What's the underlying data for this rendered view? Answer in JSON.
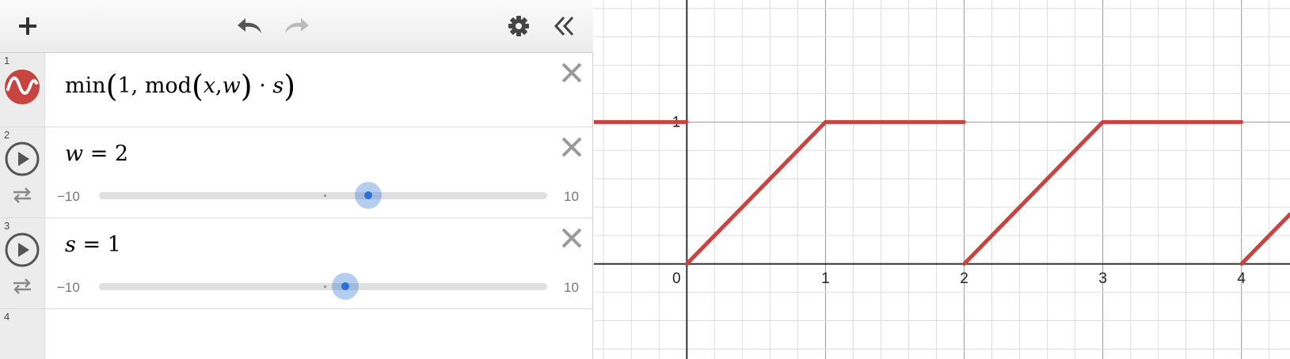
{
  "toolbar": {
    "add_icon": "plus-icon",
    "undo_icon": "undo-icon",
    "redo_icon": "redo-icon",
    "settings_icon": "gear-icon",
    "collapse_icon": "double-chevron-left-icon"
  },
  "expressions": [
    {
      "number": "1",
      "type": "expression",
      "fn": "min",
      "arg1": "1,",
      "mod": "mod",
      "x": "x",
      "comma": ",",
      "w": "w",
      "dot": "·",
      "s": "s",
      "color": "#c74440",
      "icon": "sine-wave-icon"
    },
    {
      "number": "2",
      "type": "slider",
      "variable": "w",
      "eq": " = ",
      "value": "2",
      "min": "−10",
      "max": "10",
      "slider_value": 2
    },
    {
      "number": "3",
      "type": "slider",
      "variable": "s",
      "eq": " = ",
      "value": "1",
      "min": "−10",
      "max": "10",
      "slider_value": 1
    },
    {
      "number": "4",
      "type": "empty"
    }
  ],
  "graph": {
    "x_tick_labels": [
      "0",
      "1",
      "2",
      "3",
      "4"
    ],
    "y_tick_labels": [
      "1"
    ],
    "x_range": [
      -0.67,
      4.35
    ],
    "y_range": [
      -0.67,
      1.86
    ],
    "minor_grid_step": 0.2,
    "major_grid_step": 1,
    "curve_color": "#c74440",
    "axis_color": "#333333",
    "major_grid_color": "#999999",
    "minor_grid_color": "#dddddd",
    "function": "min(1, mod(x,w)·s)",
    "w": 2,
    "s": 1
  }
}
